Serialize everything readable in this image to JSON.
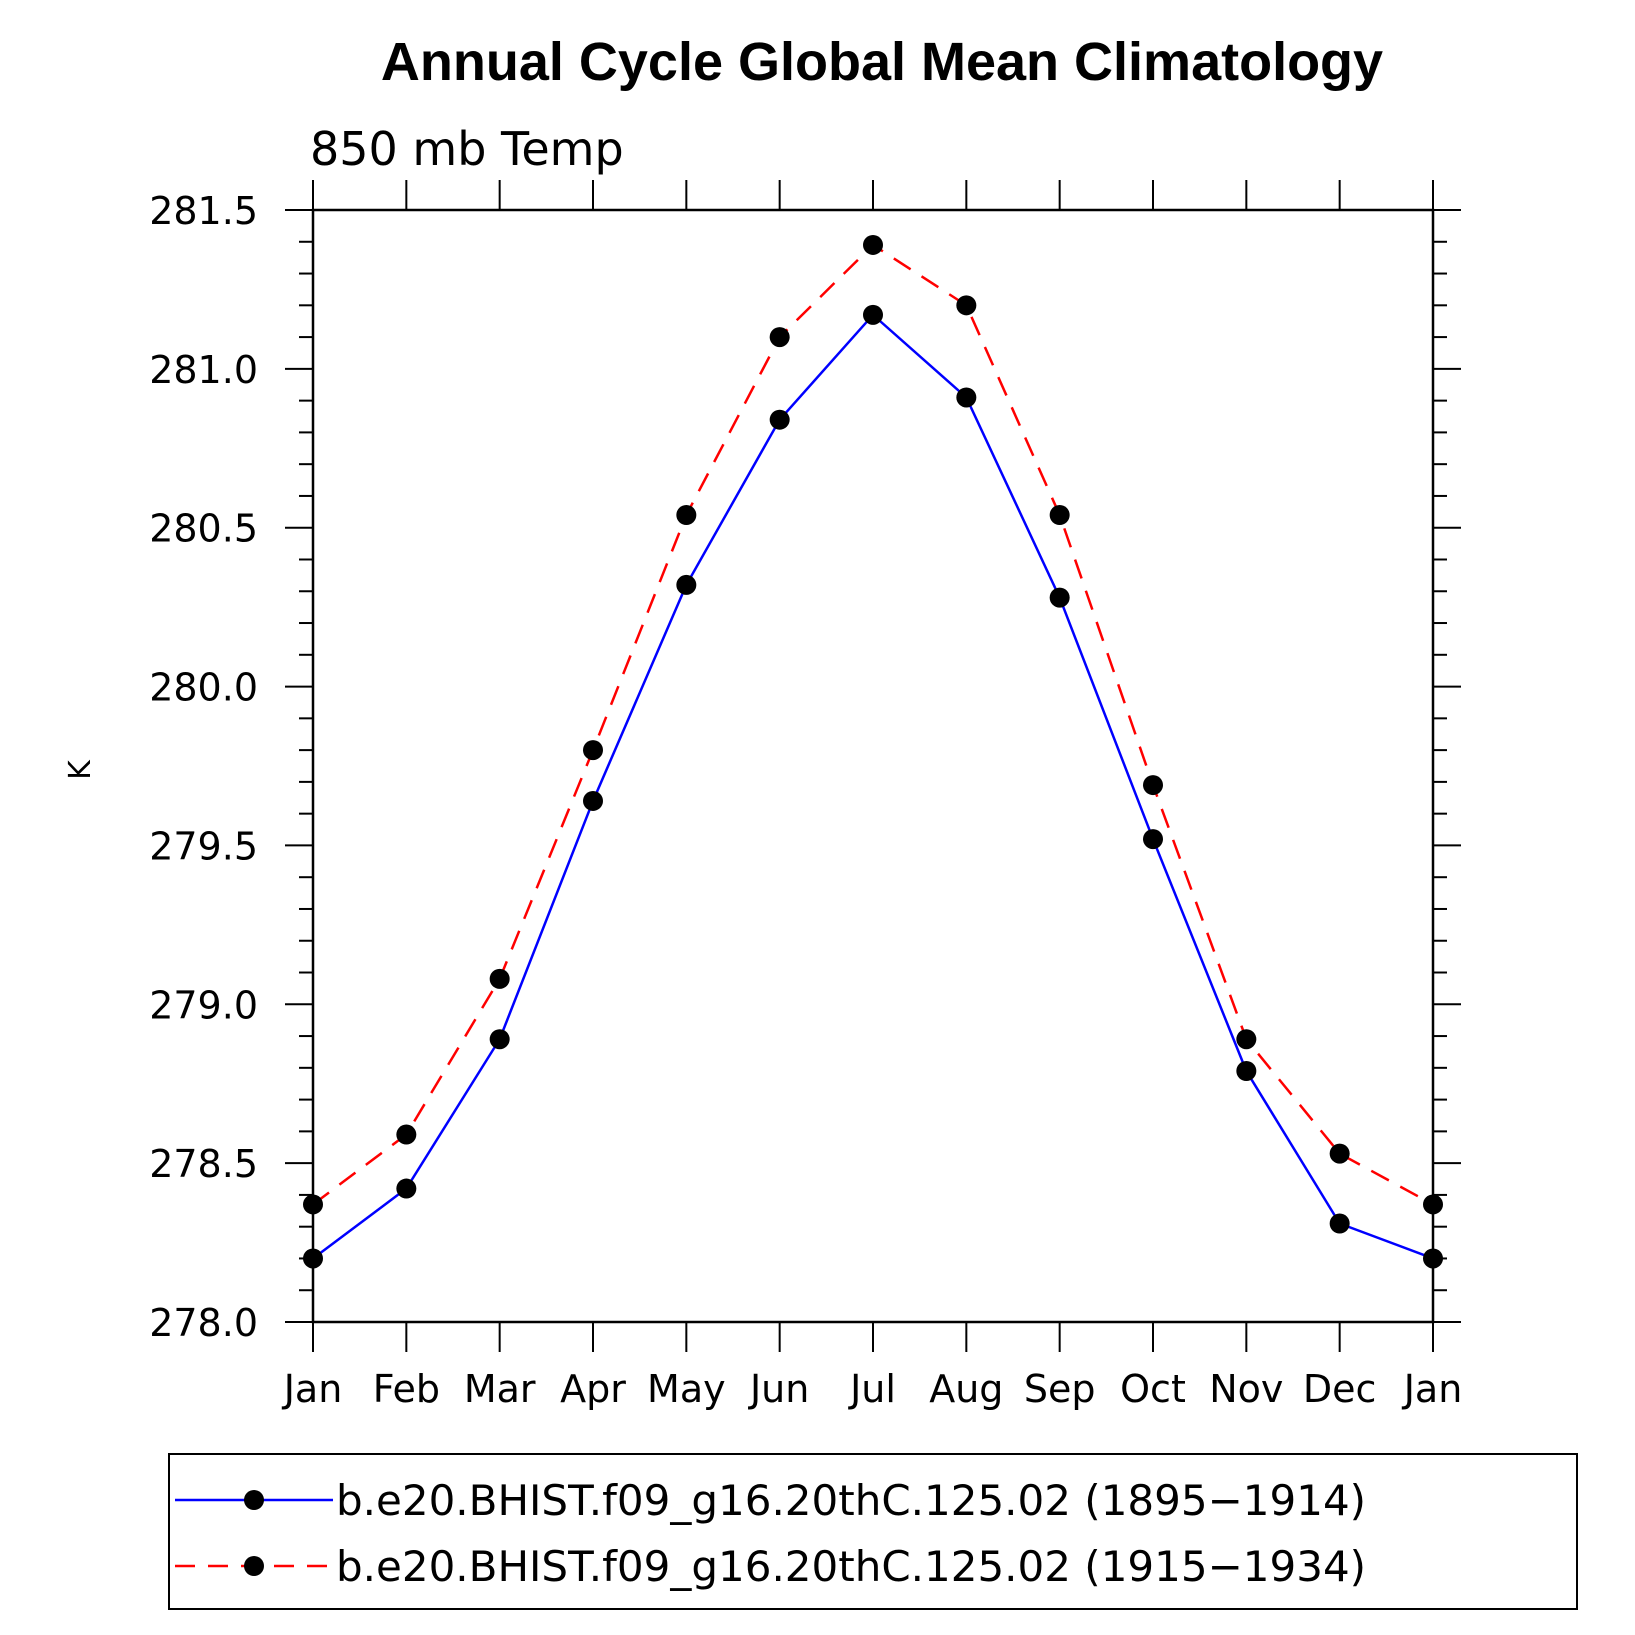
{
  "chart_data": {
    "type": "line",
    "title": "Annual Cycle Global Mean Climatology",
    "subtitle": "850 mb Temp",
    "xlabel": "",
    "ylabel": "K",
    "categories": [
      "Jan",
      "Feb",
      "Mar",
      "Apr",
      "May",
      "Jun",
      "Jul",
      "Aug",
      "Sep",
      "Oct",
      "Nov",
      "Dec",
      "Jan"
    ],
    "ylim": [
      278.0,
      281.5
    ],
    "yticks": [
      "278.0",
      "278.5",
      "279.0",
      "279.5",
      "280.0",
      "280.5",
      "281.0",
      "281.5"
    ],
    "legend_position": "bottom",
    "series": [
      {
        "name": "b.e20.BHIST.f09_g16.20thC.125.02 (1895−1914)",
        "color": "#0000ff",
        "line_style": "solid",
        "marker": "filled-circle",
        "values": [
          278.2,
          278.42,
          278.89,
          279.64,
          280.32,
          280.84,
          281.17,
          280.91,
          280.28,
          279.52,
          278.79,
          278.31,
          278.2
        ]
      },
      {
        "name": "b.e20.BHIST.f09_g16.20thC.125.02 (1915−1934)",
        "color": "#ff0000",
        "line_style": "dashed",
        "marker": "filled-circle",
        "values": [
          278.37,
          278.59,
          279.08,
          279.8,
          280.54,
          281.1,
          281.39,
          281.2,
          280.54,
          279.69,
          278.89,
          278.53,
          278.37
        ]
      }
    ]
  }
}
